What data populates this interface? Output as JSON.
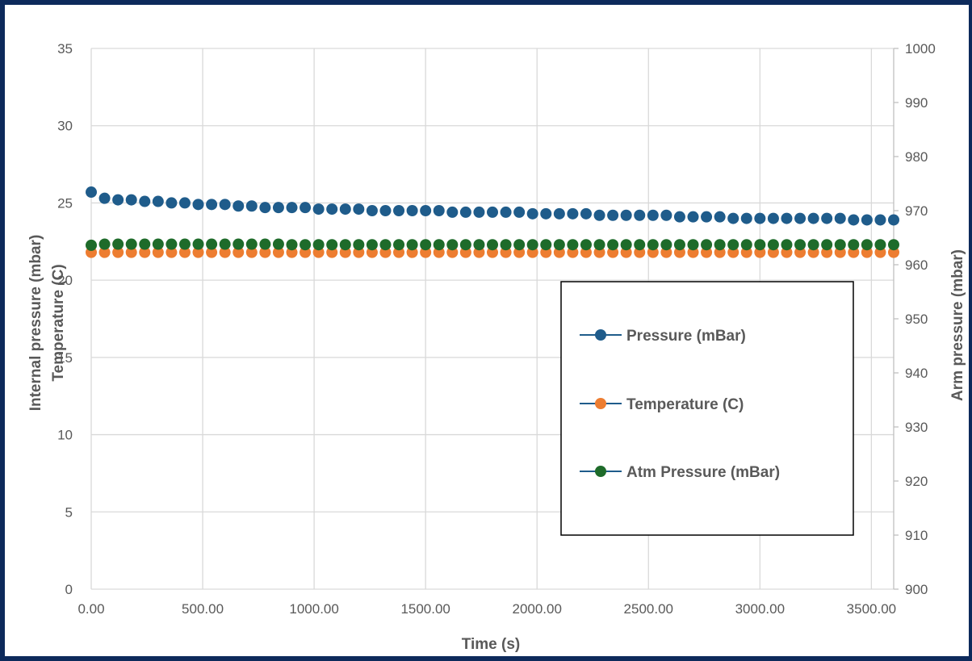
{
  "chart_data": {
    "type": "scatter",
    "xlabel": "Time (s)",
    "ylabel_left_lines": [
      "Internal pressure (mbar)",
      "Temperature (C)"
    ],
    "ylabel_right": "Arm pressure (mbar)",
    "xlim": [
      0,
      3600
    ],
    "ylim_left": [
      0,
      35
    ],
    "ylim_right": [
      900,
      1000
    ],
    "x_ticks": [
      "0.00",
      "500.00",
      "1000.00",
      "1500.00",
      "2000.00",
      "2500.00",
      "3000.00",
      "3500.00"
    ],
    "y_ticks_left": [
      "0",
      "5",
      "10",
      "15",
      "20",
      "25",
      "30",
      "35"
    ],
    "y_ticks_right": [
      "900",
      "910",
      "920",
      "930",
      "940",
      "950",
      "960",
      "970",
      "980",
      "990",
      "1000"
    ],
    "grid": true,
    "legend_position": "right-center",
    "x_start": 0,
    "x_step": 60,
    "series": [
      {
        "name": "Pressure (mBar)",
        "axis": "left",
        "color": "#1f5c8b",
        "y": [
          25.7,
          25.3,
          25.2,
          25.2,
          25.1,
          25.1,
          25.0,
          25.0,
          24.9,
          24.9,
          24.9,
          24.8,
          24.8,
          24.7,
          24.7,
          24.7,
          24.7,
          24.6,
          24.6,
          24.6,
          24.6,
          24.5,
          24.5,
          24.5,
          24.5,
          24.5,
          24.5,
          24.4,
          24.4,
          24.4,
          24.4,
          24.4,
          24.4,
          24.3,
          24.3,
          24.3,
          24.3,
          24.3,
          24.2,
          24.2,
          24.2,
          24.2,
          24.2,
          24.2,
          24.1,
          24.1,
          24.1,
          24.1,
          24.0,
          24.0,
          24.0,
          24.0,
          24.0,
          24.0,
          24.0,
          24.0,
          24.0,
          23.9,
          23.9,
          23.9,
          23.9
        ]
      },
      {
        "name": "Temperature (C)",
        "axis": "left",
        "color": "#ed7d31",
        "y": [
          21.8,
          21.8,
          21.8,
          21.8,
          21.8,
          21.8,
          21.8,
          21.8,
          21.8,
          21.8,
          21.8,
          21.8,
          21.8,
          21.8,
          21.8,
          21.8,
          21.8,
          21.8,
          21.8,
          21.8,
          21.8,
          21.8,
          21.8,
          21.8,
          21.8,
          21.8,
          21.8,
          21.8,
          21.8,
          21.8,
          21.8,
          21.8,
          21.8,
          21.8,
          21.8,
          21.8,
          21.8,
          21.8,
          21.8,
          21.8,
          21.8,
          21.8,
          21.8,
          21.8,
          21.8,
          21.8,
          21.8,
          21.8,
          21.8,
          21.8,
          21.8,
          21.8,
          21.8,
          21.8,
          21.8,
          21.8,
          21.8,
          21.8,
          21.8,
          21.8,
          21.8
        ]
      },
      {
        "name": "Atm Pressure (mBar)",
        "axis": "right",
        "color": "#1e6b2a",
        "y": [
          963.6,
          963.8,
          963.8,
          963.8,
          963.8,
          963.8,
          963.8,
          963.8,
          963.8,
          963.8,
          963.8,
          963.8,
          963.8,
          963.8,
          963.8,
          963.7,
          963.7,
          963.7,
          963.7,
          963.7,
          963.7,
          963.7,
          963.7,
          963.7,
          963.7,
          963.7,
          963.7,
          963.7,
          963.7,
          963.7,
          963.7,
          963.7,
          963.7,
          963.7,
          963.7,
          963.7,
          963.7,
          963.7,
          963.7,
          963.7,
          963.7,
          963.7,
          963.7,
          963.7,
          963.7,
          963.7,
          963.7,
          963.7,
          963.7,
          963.7,
          963.7,
          963.7,
          963.7,
          963.7,
          963.7,
          963.7,
          963.7,
          963.7,
          963.7,
          963.7,
          963.7
        ]
      }
    ]
  }
}
